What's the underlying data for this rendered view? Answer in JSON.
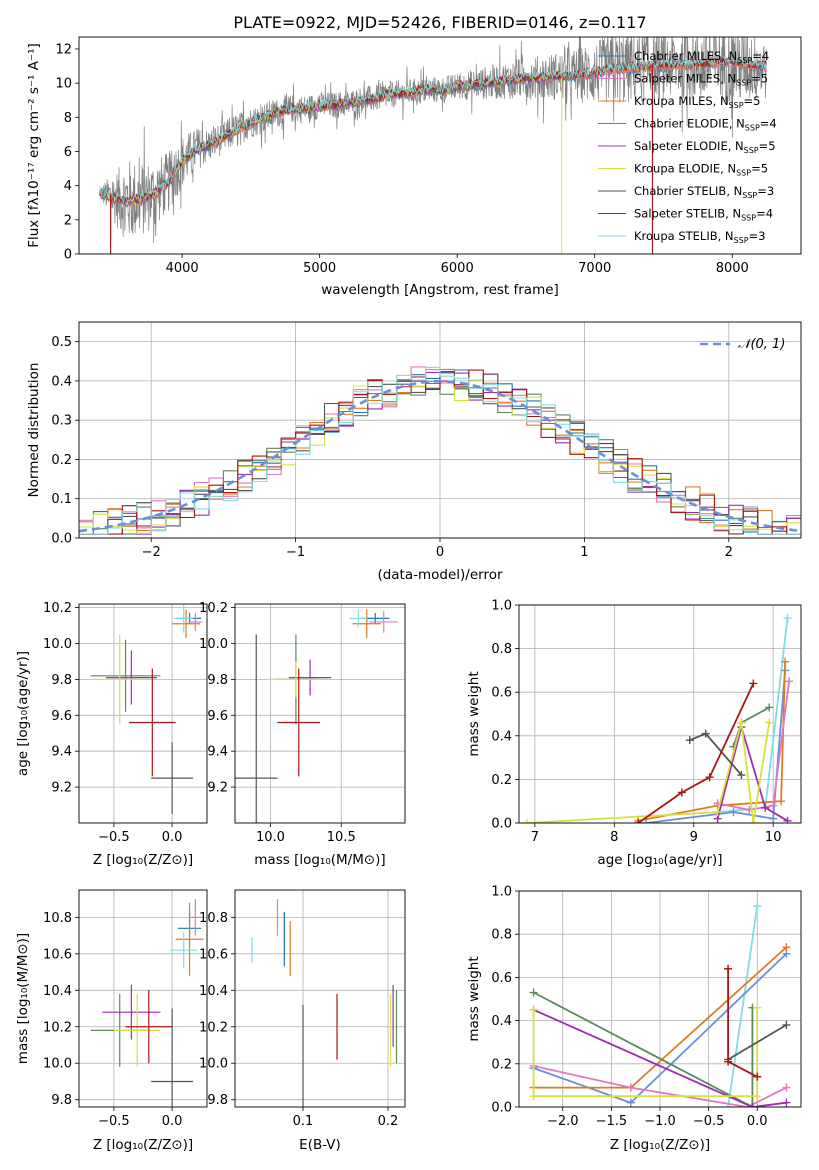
{
  "figure": {
    "title": "PLATE=0922, MJD=52426, FIBERID=0146, z=0.117"
  },
  "colors": {
    "Chabrier MILES": "#1f77b4",
    "Salpeter MILES": "#e377c2",
    "Kroupa MILES": "#e07b20",
    "Chabrier ELODIE": "#5a8a5a",
    "Salpeter ELODIE": "#9a2fb0",
    "Kroupa ELODIE": "#d8e040",
    "Chabrier STELIB": "#555555",
    "Salpeter STELIB": "#aa1515",
    "Kroupa STELIB": "#80dde0",
    "data": "#808080",
    "miles_chab_line": "#6a8fd8",
    "gauss": "#6a8fd8"
  },
  "chart_data": [
    {
      "id": "spectrum",
      "type": "line",
      "title": "PLATE=0922, MJD=52426, FIBERID=0146, z=0.117",
      "xlabel": "wavelength [Angstrom, rest frame]",
      "ylabel": "Flux [fλ10⁻¹⁷ erg cm⁻² s⁻¹ A⁻¹]",
      "xlim": [
        3250,
        8500
      ],
      "ylim": [
        0,
        12.7
      ],
      "xticks": [
        4000,
        5000,
        6000,
        7000,
        8000
      ],
      "yticks": [
        0,
        2,
        4,
        6,
        8,
        10,
        12
      ],
      "legend_position": "upper right",
      "legend": [
        {
          "label": "Chabrier MILES, N_SSP=4",
          "text": "Chabrier MILES, N",
          "sub": "SSP",
          "val": "=4"
        },
        {
          "label": "Salpeter MILES, N_SSP=5",
          "text": "Salpeter MILES, N",
          "sub": "SSP",
          "val": "=5"
        },
        {
          "label": "Kroupa MILES, N_SSP=5",
          "text": "Kroupa MILES, N",
          "sub": "SSP",
          "val": "=5"
        },
        {
          "label": "Chabrier ELODIE, N_SSP=4",
          "text": "Chabrier ELODIE, N",
          "sub": "SSP",
          "val": "=4"
        },
        {
          "label": "Salpeter ELODIE, N_SSP=5",
          "text": "Salpeter ELODIE, N",
          "sub": "SSP",
          "val": "=5"
        },
        {
          "label": "Kroupa ELODIE, N_SSP=5",
          "text": "Kroupa ELODIE, N",
          "sub": "SSP",
          "val": "=5"
        },
        {
          "label": "Chabrier STELIB, N_SSP=3",
          "text": "Chabrier STELIB, N",
          "sub": "SSP",
          "val": "=3"
        },
        {
          "label": "Salpeter STELIB, N_SSP=4",
          "text": "Salpeter STELIB, N",
          "sub": "SSP",
          "val": "=4"
        },
        {
          "label": "Kroupa STELIB, N_SSP=3",
          "text": "Kroupa STELIB, N",
          "sub": "SSP",
          "val": "=3"
        }
      ],
      "continuum": [
        [
          3400,
          3.6
        ],
        [
          3500,
          3.3
        ],
        [
          3600,
          3.1
        ],
        [
          3700,
          3.2
        ],
        [
          3800,
          3.5
        ],
        [
          3900,
          4.2
        ],
        [
          4000,
          5.4
        ],
        [
          4100,
          6.1
        ],
        [
          4200,
          6.4
        ],
        [
          4300,
          6.8
        ],
        [
          4400,
          7.3
        ],
        [
          4500,
          7.7
        ],
        [
          4600,
          8.0
        ],
        [
          4700,
          8.3
        ],
        [
          4800,
          8.5
        ],
        [
          4900,
          8.5
        ],
        [
          5000,
          8.7
        ],
        [
          5100,
          8.7
        ],
        [
          5200,
          8.8
        ],
        [
          5300,
          9.0
        ],
        [
          5400,
          9.1
        ],
        [
          5500,
          9.3
        ],
        [
          5600,
          9.4
        ],
        [
          5700,
          9.5
        ],
        [
          5800,
          9.6
        ],
        [
          5900,
          9.6
        ],
        [
          6000,
          9.8
        ],
        [
          6100,
          9.9
        ],
        [
          6200,
          10.0
        ],
        [
          6300,
          10.1
        ],
        [
          6400,
          10.2
        ],
        [
          6500,
          10.3
        ],
        [
          6600,
          10.3
        ],
        [
          6700,
          10.4
        ],
        [
          6800,
          10.4
        ],
        [
          6900,
          10.5
        ],
        [
          7000,
          10.6
        ],
        [
          7100,
          10.8
        ],
        [
          7200,
          10.9
        ],
        [
          7300,
          10.9
        ],
        [
          7400,
          11.0
        ],
        [
          7500,
          11.0
        ],
        [
          7600,
          11.1
        ],
        [
          7700,
          11.1
        ],
        [
          7800,
          11.1
        ],
        [
          7900,
          11.2
        ],
        [
          8000,
          11.2
        ],
        [
          8100,
          11.1
        ],
        [
          8200,
          11.0
        ]
      ],
      "noise_amplitude": [
        [
          3400,
          0.4
        ],
        [
          3600,
          2.5
        ],
        [
          3900,
          1.8
        ],
        [
          4200,
          1.0
        ],
        [
          5000,
          0.8
        ],
        [
          6000,
          0.8
        ],
        [
          6800,
          1.5
        ],
        [
          7200,
          2.2
        ],
        [
          7600,
          2.0
        ],
        [
          8000,
          2.5
        ],
        [
          8200,
          2.0
        ]
      ]
    },
    {
      "id": "residuals",
      "type": "histogram",
      "xlabel": "(data-model)/error",
      "ylabel": "Normed distribution",
      "xlim": [
        -2.5,
        2.5
      ],
      "ylim": [
        0,
        0.55
      ],
      "xticks": [
        -2,
        -1,
        0,
        1,
        2
      ],
      "yticks": [
        0.0,
        0.1,
        0.2,
        0.3,
        0.4,
        0.5
      ],
      "bin_width": 0.1,
      "gaussian_label": "𝒩(0, 1)",
      "legend_position": "upper right"
    },
    {
      "id": "z_age",
      "type": "scatter",
      "xlabel": "Z [log₁₀(Z/Z⊙)]",
      "ylabel": "age [log₁₀(age/yr)]",
      "xlim": [
        -0.8,
        0.3
      ],
      "ylim": [
        9.0,
        10.22
      ],
      "xticks": [
        -0.5,
        0.0
      ],
      "yticks": [
        9.2,
        9.4,
        9.6,
        9.8,
        10.0,
        10.2
      ],
      "points": [
        {
          "model": "Chabrier MILES",
          "x": 0.15,
          "y": 10.14,
          "xerr": 0.1,
          "yerr": 0.03
        },
        {
          "model": "Salpeter MILES",
          "x": 0.2,
          "y": 10.12,
          "xerr": 0.06,
          "yerr": 0.05
        },
        {
          "model": "Kroupa MILES",
          "x": 0.12,
          "y": 10.11,
          "xerr": 0.12,
          "yerr": 0.08
        },
        {
          "model": "Chabrier ELODIE",
          "x": -0.4,
          "y": 9.82,
          "xerr": 0.3,
          "yerr": 0.2
        },
        {
          "model": "Salpeter ELODIE",
          "x": -0.35,
          "y": 9.81,
          "xerr": 0.22,
          "yerr": 0.15
        },
        {
          "model": "Kroupa ELODIE",
          "x": -0.45,
          "y": 9.8,
          "xerr": 0.25,
          "yerr": 0.25
        },
        {
          "model": "Chabrier STELIB",
          "x": 0.0,
          "y": 9.25,
          "xerr": 0.18,
          "yerr": 0.2
        },
        {
          "model": "Salpeter STELIB",
          "x": -0.17,
          "y": 9.56,
          "xerr": 0.2,
          "yerr": 0.3
        },
        {
          "model": "Kroupa STELIB",
          "x": 0.1,
          "y": 10.14,
          "xerr": 0.08,
          "yerr": 0.08
        }
      ]
    },
    {
      "id": "mass_age",
      "type": "scatter",
      "xlabel": "mass [log₁₀(M/M⊙)]",
      "ylabel": "",
      "xlim": [
        9.75,
        10.95
      ],
      "ylim": [
        9.0,
        10.22
      ],
      "xticks": [
        10.0,
        10.5
      ],
      "yticks": [
        9.2,
        9.4,
        9.6,
        9.8,
        10.0,
        10.2
      ],
      "points": [
        {
          "model": "Chabrier MILES",
          "x": 10.74,
          "y": 10.14,
          "xerr": 0.1,
          "yerr": 0.03
        },
        {
          "model": "Salpeter MILES",
          "x": 10.8,
          "y": 10.12,
          "xerr": 0.1,
          "yerr": 0.06
        },
        {
          "model": "Kroupa MILES",
          "x": 10.68,
          "y": 10.11,
          "xerr": 0.1,
          "yerr": 0.08
        },
        {
          "model": "Chabrier ELODIE",
          "x": 10.18,
          "y": 9.8,
          "xerr": 0.15,
          "yerr": 0.25
        },
        {
          "model": "Salpeter ELODIE",
          "x": 10.28,
          "y": 9.81,
          "xerr": 0.15,
          "yerr": 0.1
        },
        {
          "model": "Kroupa ELODIE",
          "x": 10.18,
          "y": 9.8,
          "xerr": 0.2,
          "yerr": 0.1
        },
        {
          "model": "Chabrier STELIB",
          "x": 9.9,
          "y": 9.25,
          "xerr": 0.15,
          "yerr": 0.8
        },
        {
          "model": "Salpeter STELIB",
          "x": 10.2,
          "y": 9.56,
          "xerr": 0.15,
          "yerr": 0.3
        },
        {
          "model": "Kroupa STELIB",
          "x": 10.62,
          "y": 10.14,
          "xerr": 0.06,
          "yerr": 0.05
        }
      ]
    },
    {
      "id": "age_weight",
      "type": "line",
      "xlabel": "age [log₁₀(age/yr)]",
      "ylabel": "mass weight",
      "xlim": [
        6.8,
        10.35
      ],
      "ylim": [
        0,
        1.0
      ],
      "xticks": [
        7,
        8,
        9,
        10
      ],
      "yticks": [
        0.0,
        0.2,
        0.4,
        0.6,
        0.8,
        1.0
      ],
      "series": [
        {
          "model": "Kroupa STELIB",
          "points": [
            [
              9.3,
              0.05
            ],
            [
              9.9,
              0.07
            ],
            [
              10.18,
              0.94
            ]
          ]
        },
        {
          "model": "Chabrier MILES",
          "points": [
            [
              8.4,
              0.0
            ],
            [
              9.5,
              0.05
            ],
            [
              10.0,
              0.02
            ],
            [
              10.15,
              0.7
            ]
          ]
        },
        {
          "model": "Kroupa MILES",
          "points": [
            [
              8.3,
              0.01
            ],
            [
              9.3,
              0.08
            ],
            [
              10.1,
              0.1
            ],
            [
              10.15,
              0.74
            ]
          ]
        },
        {
          "model": "Salpeter MILES",
          "points": [
            [
              9.3,
              0.09
            ],
            [
              9.7,
              0.06
            ],
            [
              10.0,
              0.08
            ],
            [
              10.2,
              0.65
            ]
          ]
        },
        {
          "model": "Chabrier ELODIE",
          "points": [
            [
              9.5,
              0.35
            ],
            [
              9.6,
              0.46
            ],
            [
              9.95,
              0.53
            ]
          ]
        },
        {
          "model": "Salpeter ELODIE",
          "points": [
            [
              9.3,
              0.02
            ],
            [
              9.6,
              0.44
            ],
            [
              9.9,
              0.07
            ],
            [
              10.18,
              0.01
            ]
          ]
        },
        {
          "model": "Kroupa ELODIE",
          "points": [
            [
              6.9,
              0.0
            ],
            [
              9.3,
              0.05
            ],
            [
              9.6,
              0.46
            ],
            [
              9.75,
              0.0
            ],
            [
              9.95,
              0.46
            ]
          ]
        },
        {
          "model": "Chabrier STELIB",
          "points": [
            [
              8.95,
              0.38
            ],
            [
              9.15,
              0.41
            ],
            [
              9.6,
              0.22
            ]
          ]
        },
        {
          "model": "Salpeter STELIB",
          "points": [
            [
              8.3,
              0.0
            ],
            [
              8.85,
              0.14
            ],
            [
              9.2,
              0.21
            ],
            [
              9.75,
              0.64
            ]
          ]
        }
      ]
    },
    {
      "id": "z_mass",
      "type": "scatter",
      "xlabel": "Z [log₁₀(Z/Z⊙)]",
      "ylabel": "mass [log₁₀(M/M⊙)]",
      "xlim": [
        -0.8,
        0.3
      ],
      "ylim": [
        9.76,
        10.95
      ],
      "xticks": [
        -0.5,
        0.0
      ],
      "yticks": [
        9.8,
        10.0,
        10.2,
        10.4,
        10.6,
        10.8
      ],
      "points": [
        {
          "model": "Chabrier MILES",
          "x": 0.15,
          "y": 10.74,
          "xerr": 0.1,
          "yerr": 0.1
        },
        {
          "model": "Salpeter MILES",
          "x": 0.2,
          "y": 10.8,
          "xerr": 0.06,
          "yerr": 0.1
        },
        {
          "model": "Kroupa MILES",
          "x": 0.15,
          "y": 10.68,
          "xerr": 0.12,
          "yerr": 0.2
        },
        {
          "model": "Chabrier ELODIE",
          "x": -0.45,
          "y": 10.18,
          "xerr": 0.25,
          "yerr": 0.2
        },
        {
          "model": "Salpeter ELODIE",
          "x": -0.35,
          "y": 10.28,
          "xerr": 0.25,
          "yerr": 0.15
        },
        {
          "model": "Kroupa ELODIE",
          "x": -0.3,
          "y": 10.18,
          "xerr": 0.2,
          "yerr": 0.2
        },
        {
          "model": "Chabrier STELIB",
          "x": 0.0,
          "y": 9.9,
          "xerr": 0.18,
          "yerr": 0.4
        },
        {
          "model": "Salpeter STELIB",
          "x": -0.2,
          "y": 10.2,
          "xerr": 0.2,
          "yerr": 0.2
        },
        {
          "model": "Kroupa STELIB",
          "x": 0.1,
          "y": 10.62,
          "xerr": 0.12,
          "yerr": 0.1
        }
      ]
    },
    {
      "id": "ebv_mass",
      "type": "scatter",
      "xlabel": "E(B-V)",
      "ylabel": "",
      "xlim": [
        0.02,
        0.22
      ],
      "ylim": [
        9.76,
        10.95
      ],
      "xticks": [
        0.1,
        0.2
      ],
      "yticks": [
        9.8,
        10.0,
        10.2,
        10.4,
        10.6,
        10.8
      ],
      "points": [
        {
          "model": "Kroupa STELIB",
          "x": 0.04,
          "y": 10.62,
          "yerr": 0.07
        },
        {
          "model": "Salpeter MILES",
          "x": 0.07,
          "y": 10.8,
          "yerr": 0.1
        },
        {
          "model": "Chabrier MILES",
          "x": 0.078,
          "y": 10.68,
          "yerr": 0.15
        },
        {
          "model": "Kroupa MILES",
          "x": 0.085,
          "y": 10.63,
          "yerr": 0.15
        },
        {
          "model": "Chabrier STELIB",
          "x": 0.1,
          "y": 10.0,
          "yerr": 0.32
        },
        {
          "model": "Salpeter STELIB",
          "x": 0.14,
          "y": 10.2,
          "yerr": 0.18
        },
        {
          "model": "Kroupa ELODIE",
          "x": 0.203,
          "y": 10.18,
          "yerr": 0.2
        },
        {
          "model": "Salpeter ELODIE",
          "x": 0.206,
          "y": 10.26,
          "yerr": 0.17
        },
        {
          "model": "Chabrier ELODIE",
          "x": 0.21,
          "y": 10.2,
          "yerr": 0.2
        }
      ]
    },
    {
      "id": "z_weight",
      "type": "line",
      "xlabel": "Z [log₁₀(Z/Z⊙)]",
      "ylabel": "mass weight",
      "xlim": [
        -2.45,
        0.45
      ],
      "ylim": [
        0,
        1.0
      ],
      "xticks": [
        -2.0,
        -1.5,
        -1.0,
        -0.5,
        0.0
      ],
      "yticks": [
        0.0,
        0.2,
        0.4,
        0.6,
        0.8,
        1.0
      ],
      "series": [
        {
          "model": "Kroupa STELIB",
          "points": [
            [
              -0.3,
              0.0
            ],
            [
              0.0,
              0.93
            ]
          ]
        },
        {
          "model": "Chabrier MILES",
          "points": [
            [
              -2.3,
              0.18
            ],
            [
              -1.3,
              0.02
            ],
            [
              0.3,
              0.71
            ]
          ]
        },
        {
          "model": "Kroupa MILES",
          "points": [
            [
              -2.3,
              0.09
            ],
            [
              -1.3,
              0.09
            ],
            [
              0.3,
              0.74
            ]
          ]
        },
        {
          "model": "Salpeter MILES",
          "points": [
            [
              -2.3,
              0.19
            ],
            [
              -1.3,
              0.09
            ],
            [
              -0.1,
              0.0
            ],
            [
              0.3,
              0.09
            ]
          ]
        },
        {
          "model": "Chabrier ELODIE",
          "points": [
            [
              -2.3,
              0.53
            ],
            [
              -0.05,
              0.0
            ],
            [
              -0.05,
              0.46
            ]
          ]
        },
        {
          "model": "Salpeter ELODIE",
          "points": [
            [
              -2.3,
              0.45
            ],
            [
              -0.05,
              0.0
            ],
            [
              0.3,
              0.02
            ]
          ]
        },
        {
          "model": "Kroupa ELODIE",
          "points": [
            [
              -2.3,
              0.45
            ],
            [
              -2.3,
              0.05
            ],
            [
              0.0,
              0.05
            ],
            [
              0.0,
              0.46
            ]
          ]
        },
        {
          "model": "Chabrier STELIB",
          "points": [
            [
              -0.3,
              0.22
            ],
            [
              0.3,
              0.38
            ]
          ]
        },
        {
          "model": "Salpeter STELIB",
          "points": [
            [
              -0.3,
              0.64
            ],
            [
              -0.3,
              0.21
            ],
            [
              0.0,
              0.14
            ]
          ]
        }
      ]
    }
  ]
}
